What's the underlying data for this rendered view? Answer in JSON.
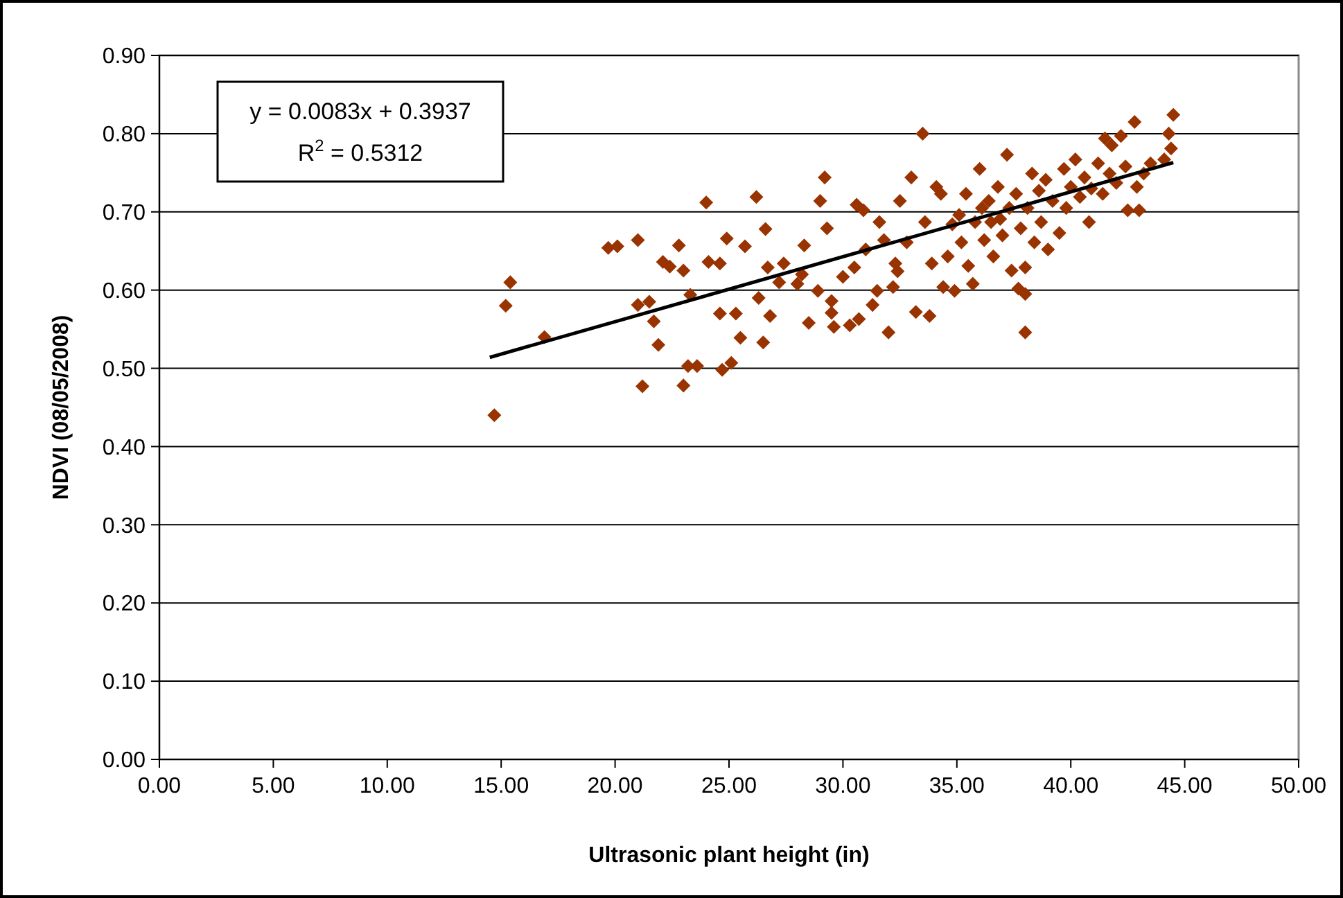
{
  "chart_data": {
    "type": "scatter",
    "xlabel": "Ultrasonic plant height (in)",
    "ylabel": "NDVI (08/05/2008)",
    "annotations": [
      "y = 0.0083x + 0.3937",
      "R$^{2}$ = 0.5312"
    ],
    "xlim": [
      0,
      50
    ],
    "ylim": [
      0,
      0.9
    ],
    "xticks": [
      {
        "value": 0,
        "label": "0.00"
      },
      {
        "value": 5,
        "label": "5.00"
      },
      {
        "value": 10,
        "label": "10.00"
      },
      {
        "value": 15,
        "label": "15.00"
      },
      {
        "value": 20,
        "label": "20.00"
      },
      {
        "value": 25,
        "label": "25.00"
      },
      {
        "value": 30,
        "label": "30.00"
      },
      {
        "value": 35,
        "label": "35.00"
      },
      {
        "value": 40,
        "label": "40.00"
      },
      {
        "value": 45,
        "label": "45.00"
      },
      {
        "value": 50,
        "label": "50.00"
      }
    ],
    "yticks": [
      {
        "value": 0,
        "label": "0.00"
      },
      {
        "value": 0.1,
        "label": "0.10"
      },
      {
        "value": 0.2,
        "label": "0.20"
      },
      {
        "value": 0.3,
        "label": "0.30"
      },
      {
        "value": 0.4,
        "label": "0.40"
      },
      {
        "value": 0.5,
        "label": "0.50"
      },
      {
        "value": 0.6,
        "label": "0.60"
      },
      {
        "value": 0.7,
        "label": "0.70"
      },
      {
        "value": 0.8,
        "label": "0.80"
      },
      {
        "value": 0.9,
        "label": "0.90"
      }
    ],
    "grid": "y",
    "marker": "diamond",
    "series": [
      {
        "color": "#993300",
        "x": [
          14.7,
          15.2,
          15.4,
          16.9,
          19.7,
          20.1,
          21.0,
          21.2,
          21.0,
          21.5,
          21.7,
          21.9,
          22.4,
          22.1,
          22.8,
          23.0,
          23.0,
          23.2,
          23.6,
          23.3,
          24.1,
          24.0,
          24.6,
          24.6,
          25.5,
          24.7,
          25.1,
          25.3,
          24.9,
          25.7,
          26.3,
          26.5,
          26.2,
          26.7,
          26.6,
          26.8,
          27.2,
          27.4,
          28.0,
          28.2,
          28.3,
          28.5,
          28.9,
          29.0,
          29.2,
          29.3,
          29.5,
          29.6,
          29.5,
          30.0,
          30.3,
          30.5,
          30.6,
          30.9,
          30.7,
          31.0,
          31.3,
          31.5,
          31.6,
          31.8,
          32.0,
          32.2,
          32.3,
          32.5,
          32.4,
          32.8,
          33.0,
          33.2,
          33.5,
          33.6,
          33.8,
          33.9,
          34.1,
          34.3,
          34.4,
          34.6,
          34.8,
          34.9,
          35.1,
          35.2,
          35.4,
          35.5,
          35.7,
          35.8,
          36.0,
          36.1,
          36.2,
          36.4,
          36.5,
          36.6,
          36.8,
          36.9,
          37.0,
          37.2,
          37.3,
          37.4,
          37.6,
          37.7,
          37.8,
          38.0,
          38.0,
          38.0,
          38.1,
          38.3,
          38.4,
          38.6,
          38.7,
          38.9,
          39.0,
          39.2,
          39.5,
          39.7,
          39.8,
          40.0,
          40.2,
          40.4,
          40.6,
          40.8,
          40.9,
          41.2,
          41.4,
          41.5,
          41.7,
          41.8,
          42.0,
          42.2,
          42.4,
          42.5,
          42.8,
          42.9,
          43.0,
          43.2,
          43.5,
          44.3,
          44.5,
          44.4,
          44.1
        ],
        "values": [
          0.44,
          0.58,
          0.61,
          0.54,
          0.654,
          0.656,
          0.664,
          0.477,
          0.581,
          0.585,
          0.56,
          0.53,
          0.63,
          0.636,
          0.657,
          0.625,
          0.478,
          0.503,
          0.503,
          0.594,
          0.636,
          0.712,
          0.634,
          0.57,
          0.539,
          0.498,
          0.507,
          0.57,
          0.666,
          0.656,
          0.59,
          0.533,
          0.719,
          0.629,
          0.678,
          0.567,
          0.61,
          0.634,
          0.608,
          0.62,
          0.657,
          0.558,
          0.599,
          0.714,
          0.744,
          0.679,
          0.571,
          0.553,
          0.586,
          0.617,
          0.555,
          0.629,
          0.709,
          0.702,
          0.563,
          0.652,
          0.581,
          0.599,
          0.687,
          0.664,
          0.546,
          0.604,
          0.634,
          0.714,
          0.624,
          0.661,
          0.744,
          0.572,
          0.8,
          0.687,
          0.567,
          0.634,
          0.732,
          0.723,
          0.604,
          0.643,
          0.684,
          0.599,
          0.696,
          0.661,
          0.723,
          0.631,
          0.608,
          0.687,
          0.755,
          0.705,
          0.664,
          0.714,
          0.687,
          0.643,
          0.732,
          0.691,
          0.67,
          0.773,
          0.705,
          0.625,
          0.723,
          0.602,
          0.679,
          0.546,
          0.595,
          0.629,
          0.705,
          0.749,
          0.661,
          0.727,
          0.687,
          0.741,
          0.652,
          0.714,
          0.673,
          0.755,
          0.705,
          0.732,
          0.767,
          0.719,
          0.744,
          0.687,
          0.73,
          0.762,
          0.723,
          0.794,
          0.749,
          0.785,
          0.737,
          0.797,
          0.758,
          0.702,
          0.815,
          0.732,
          0.702,
          0.749,
          0.762,
          0.8,
          0.824,
          0.781,
          0.767
        ]
      },
      {
        "type": "line",
        "color": "#000000",
        "marker": "none",
        "x": [
          14.5,
          44.5
        ],
        "values": [
          0.514,
          0.763
        ]
      }
    ]
  }
}
